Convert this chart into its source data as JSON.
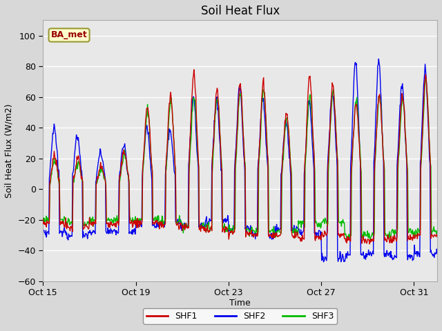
{
  "title": "Soil Heat Flux",
  "ylabel": "Soil Heat Flux (W/m2)",
  "xlabel": "Time",
  "ylim": [
    -60,
    110
  ],
  "yticks": [
    -60,
    -40,
    -20,
    0,
    20,
    40,
    60,
    80,
    100
  ],
  "n_days": 17,
  "n_points_per_day": 48,
  "color_shf1": "#cc0000",
  "color_shf2": "#0000ee",
  "color_shf3": "#00bb00",
  "legend_labels": [
    "SHF1",
    "SHF2",
    "SHF3"
  ],
  "station_label": "BA_met",
  "station_box_facecolor": "#ffffcc",
  "station_box_edgecolor": "#999933",
  "station_text_color": "#990000",
  "fig_facecolor": "#d8d8d8",
  "plot_bg_color": "#e8e8e8",
  "xtick_labels": [
    "Oct 15",
    "Oct 19",
    "Oct 23",
    "Oct 27",
    "Oct 31"
  ],
  "xtick_positions": [
    0,
    4,
    8,
    12,
    16
  ],
  "line_width": 1.0,
  "title_fontsize": 12,
  "axis_fontsize": 9,
  "tick_fontsize": 9
}
